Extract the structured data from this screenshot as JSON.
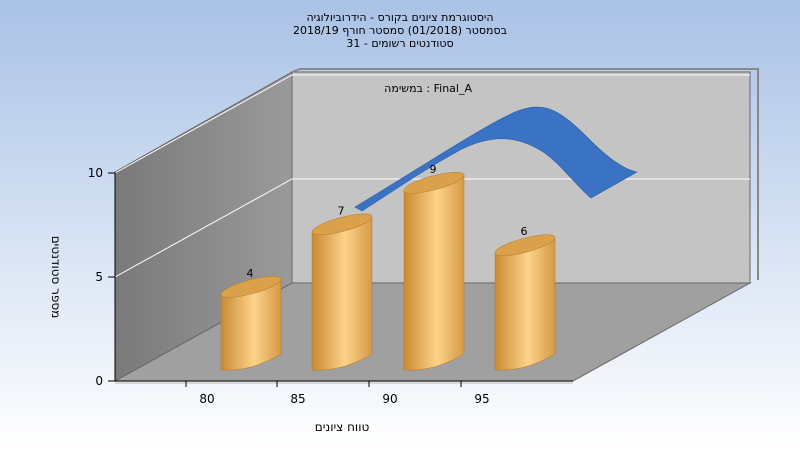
{
  "chart_data": {
    "type": "bar",
    "title_lines": [
      "היסטוגרמת ציונים בקורס - הידרוביולוגיה",
      "בסמסטר  (01/2018)  סמסטר חורף  2018/19",
      "סטודנטים רשומים - 31"
    ],
    "xlabel": "טווח ציונים",
    "ylabel": "מספר סטודנטים",
    "x_ticks": [
      "80",
      "85",
      "90",
      "95"
    ],
    "y_ticks": [
      "0",
      "5",
      "10"
    ],
    "ylim": [
      0,
      10
    ],
    "categories": [
      "80-85",
      "85-90",
      "90-95",
      "95-100"
    ],
    "values": [
      4,
      7,
      9,
      6
    ],
    "data_labels": [
      "4",
      "7",
      "9",
      "6"
    ],
    "annotation": "במשימה : Final_A",
    "grid": true,
    "colors": {
      "background_top": "#a9c2e6",
      "background_bottom": "#ffffff",
      "bar_light": "#fdd38a",
      "bar_dark": "#c98a33",
      "curve": "#3a72c4",
      "wall_left": "#8c8c8c",
      "wall_back": "#c4c4c4",
      "floor": "#a0a0a0"
    }
  }
}
